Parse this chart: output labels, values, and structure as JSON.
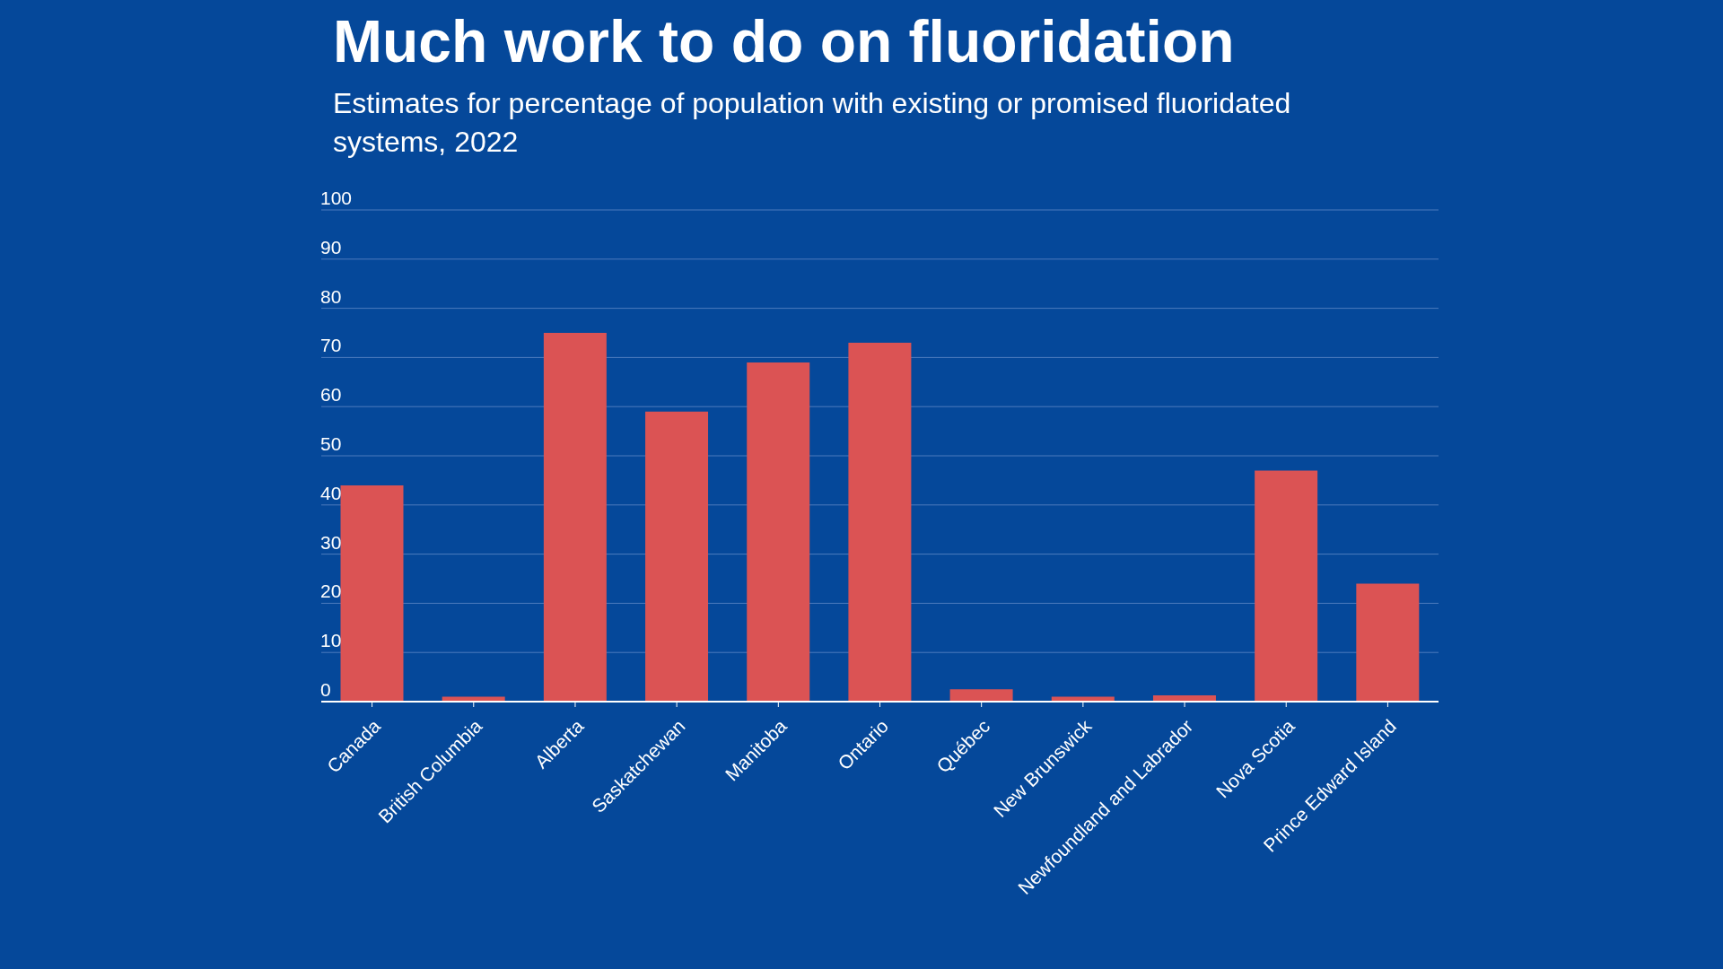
{
  "chart_data": {
    "type": "bar",
    "title": "Much work to do on fluoridation",
    "subtitle": "Estimates for percentage of population with existing or promised fluoridated systems, 2022",
    "categories": [
      "Canada",
      "British Columbia",
      "Alberta",
      "Saskatchewan",
      "Manitoba",
      "Ontario",
      "Québec",
      "New Brunswick",
      "Newfoundland and Labrador",
      "Nova Scotia",
      "Prince Edward Island"
    ],
    "values": [
      44,
      1,
      75,
      59,
      69,
      73,
      2.5,
      1,
      1.3,
      47,
      24
    ],
    "color": "#db5354",
    "ylim": [
      0,
      100
    ],
    "yticks": [
      0,
      10,
      20,
      30,
      40,
      50,
      60,
      70,
      80,
      90,
      100
    ],
    "grid": "y"
  }
}
